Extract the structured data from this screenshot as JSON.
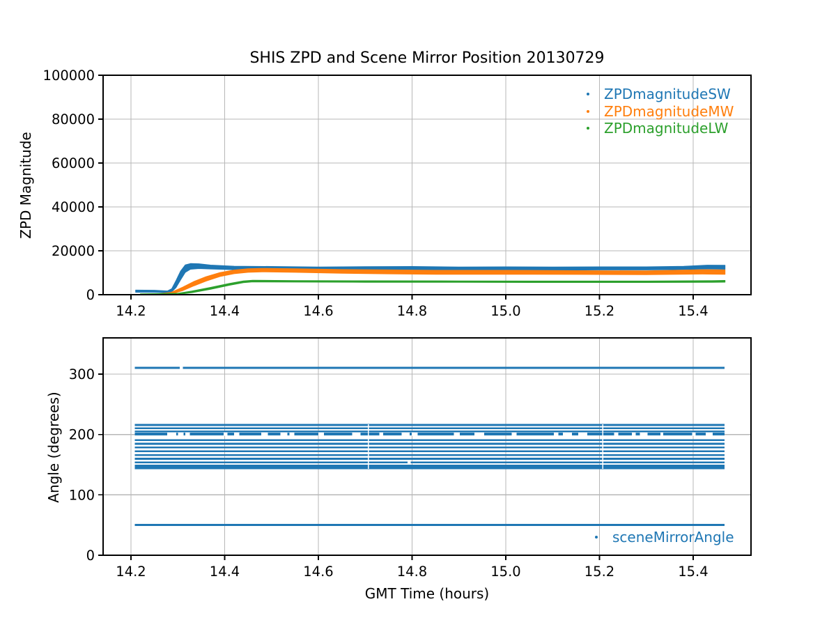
{
  "figure": {
    "title": "SHIS ZPD and Scene Mirror Position 20130729"
  },
  "palette": {
    "blue": "#1f77b4",
    "orange": "#ff7f0e",
    "green": "#2ca02c",
    "grid": "#b7b7b7",
    "axis": "#000000",
    "background": "#ffffff"
  },
  "chart_data": [
    {
      "type": "scatter",
      "title": "SHIS ZPD and Scene Mirror Position 20130729",
      "xlabel": "",
      "ylabel": "ZPD Magnitude",
      "xlim": [
        14.1405,
        15.5235
      ],
      "ylim": [
        0,
        100000
      ],
      "xticks": [
        14.2,
        14.4,
        14.6,
        14.8,
        15.0,
        15.2,
        15.4
      ],
      "xticklabels": [
        "14.2",
        "14.4",
        "14.6",
        "14.8",
        "15.0",
        "15.2",
        "15.4"
      ],
      "yticks": [
        0,
        20000,
        40000,
        60000,
        80000,
        100000
      ],
      "yticklabels": [
        "0",
        "20000",
        "40000",
        "60000",
        "80000",
        "100000"
      ],
      "grid": true,
      "legend": {
        "position": "upper right",
        "frame": false,
        "entries": [
          {
            "label": "ZPDmagnitudeSW",
            "color": "#1f77b4"
          },
          {
            "label": "ZPDmagnitudeMW",
            "color": "#ff7f0e"
          },
          {
            "label": "ZPDmagnitudeLW",
            "color": "#2ca02c"
          }
        ]
      },
      "series": [
        {
          "name": "ZPDmagnitudeSW",
          "color": "#1f77b4",
          "points_t_value_spread": [
            [
              14.21,
              1600,
              500
            ],
            [
              14.25,
              1550,
              480
            ],
            [
              14.268,
              1400,
              420
            ],
            [
              14.278,
              1300,
              400
            ],
            [
              14.287,
              2000,
              700
            ],
            [
              14.296,
              4800,
              1600
            ],
            [
              14.306,
              8800,
              2000
            ],
            [
              14.316,
              11900,
              1700
            ],
            [
              14.327,
              12900,
              1300
            ],
            [
              14.345,
              13000,
              1100
            ],
            [
              14.37,
              12600,
              900
            ],
            [
              14.42,
              12200,
              800
            ],
            [
              14.5,
              12100,
              750
            ],
            [
              14.6,
              11900,
              750
            ],
            [
              14.7,
              12000,
              750
            ],
            [
              14.8,
              12100,
              750
            ],
            [
              14.9,
              11900,
              700
            ],
            [
              15.0,
              12000,
              700
            ],
            [
              15.1,
              11900,
              700
            ],
            [
              15.2,
              12000,
              700
            ],
            [
              15.3,
              12000,
              700
            ],
            [
              15.38,
              12200,
              750
            ],
            [
              15.43,
              12600,
              850
            ],
            [
              15.468,
              12500,
              900
            ]
          ]
        },
        {
          "name": "ZPDmagnitudeMW",
          "color": "#ff7f0e",
          "points_t_value_spread": [
            [
              14.258,
              250,
              200
            ],
            [
              14.285,
              650,
              380
            ],
            [
              14.31,
              2600,
              800
            ],
            [
              14.335,
              5100,
              1000
            ],
            [
              14.36,
              7200,
              1000
            ],
            [
              14.39,
              9200,
              900
            ],
            [
              14.42,
              10400,
              850
            ],
            [
              14.45,
              11000,
              800
            ],
            [
              14.48,
              11200,
              800
            ],
            [
              14.55,
              11000,
              800
            ],
            [
              14.65,
              10600,
              850
            ],
            [
              14.75,
              10400,
              900
            ],
            [
              14.85,
              10200,
              900
            ],
            [
              15.0,
              10200,
              900
            ],
            [
              15.15,
              10100,
              850
            ],
            [
              15.3,
              10000,
              850
            ],
            [
              15.42,
              10400,
              1000
            ],
            [
              15.468,
              10300,
              1000
            ]
          ]
        },
        {
          "name": "ZPDmagnitudeLW",
          "color": "#2ca02c",
          "points_t_value_spread": [
            [
              14.22,
              200,
              180
            ],
            [
              14.3,
              380,
              240
            ],
            [
              14.33,
              1300,
              380
            ],
            [
              14.37,
              2900,
              420
            ],
            [
              14.41,
              4700,
              420
            ],
            [
              14.44,
              5900,
              400
            ],
            [
              14.46,
              6200,
              360
            ],
            [
              14.55,
              6100,
              340
            ],
            [
              14.7,
              6000,
              340
            ],
            [
              14.9,
              5950,
              330
            ],
            [
              15.1,
              5900,
              330
            ],
            [
              15.3,
              5900,
              330
            ],
            [
              15.44,
              6000,
              380
            ],
            [
              15.468,
              6100,
              400
            ]
          ]
        }
      ]
    },
    {
      "type": "scatter",
      "title": "",
      "xlabel": "GMT Time (hours)",
      "ylabel": "Angle (degrees)",
      "xlim": [
        14.1405,
        15.5235
      ],
      "ylim": [
        0,
        360
      ],
      "xticks": [
        14.2,
        14.4,
        14.6,
        14.8,
        15.0,
        15.2,
        15.4
      ],
      "xticklabels": [
        "14.2",
        "14.4",
        "14.6",
        "14.8",
        "15.0",
        "15.2",
        "15.4"
      ],
      "yticks": [
        0,
        100,
        200,
        300
      ],
      "yticklabels": [
        "0",
        "100",
        "200",
        "300"
      ],
      "grid": true,
      "legend": {
        "position": "lower right",
        "frame": false,
        "entries": [
          {
            "label": "sceneMirrorAngle",
            "color": "#1f77b4"
          }
        ]
      },
      "series": [
        {
          "name": "sceneMirrorAngle",
          "color": "#1f77b4",
          "t_range": [
            14.208,
            15.467
          ],
          "band_range_deg": [
            143.0,
            217.0
          ],
          "hlines_angle_thickness": [
            {
              "angle": 310.5,
              "px": 3.0,
              "gaps": [
                [
                  14.304,
                  14.311
                ]
              ]
            },
            {
              "angle": 50.2,
              "px": 2.6,
              "gaps": []
            },
            {
              "angle": 215.8,
              "px": 2.6,
              "gaps": []
            },
            {
              "angle": 210.4,
              "px": 2.6,
              "gaps": []
            },
            {
              "angle": 205.3,
              "px": 2.6,
              "gaps": []
            },
            {
              "angle": 200.7,
              "px": 4.0,
              "gaps": [
                [
                  14.277,
                  14.297
                ],
                [
                  14.3,
                  14.312
                ],
                [
                  14.316,
                  14.326
                ],
                [
                  14.398,
                  14.406
                ],
                [
                  14.42,
                  14.431
                ],
                [
                  14.478,
                  14.492
                ],
                [
                  14.519,
                  14.534
                ],
                [
                  14.538,
                  14.549
                ],
                [
                  14.6,
                  14.612
                ],
                [
                  14.672,
                  14.69
                ],
                [
                  14.73,
                  14.738
                ],
                [
                  14.778,
                  14.795
                ],
                [
                  14.799,
                  14.812
                ],
                [
                  14.889,
                  14.902
                ],
                [
                  14.933,
                  14.954
                ],
                [
                  15.013,
                  15.023
                ],
                [
                  15.103,
                  15.112
                ],
                [
                  15.122,
                  15.141
                ],
                [
                  15.155,
                  15.174
                ],
                [
                  15.231,
                  15.24
                ],
                [
                  15.269,
                  15.277
                ],
                [
                  15.286,
                  15.303
                ],
                [
                  15.33,
                  15.336
                ],
                [
                  15.398,
                  15.405
                ],
                [
                  15.427,
                  15.442
                ]
              ]
            },
            {
              "angle": 190.8,
              "px": 2.6,
              "gaps": []
            },
            {
              "angle": 184.6,
              "px": 2.6,
              "gaps": []
            },
            {
              "angle": 178.4,
              "px": 2.6,
              "gaps": []
            },
            {
              "angle": 172.2,
              "px": 2.6,
              "gaps": []
            },
            {
              "angle": 166.0,
              "px": 2.6,
              "gaps": []
            },
            {
              "angle": 159.8,
              "px": 2.6,
              "gaps": []
            },
            {
              "angle": 153.6,
              "px": 2.6,
              "gaps": [
                [
                  14.79,
                  14.797
                ]
              ]
            },
            {
              "angle": 148.3,
              "px": 2.6,
              "gaps": []
            },
            {
              "angle": 144.3,
              "px": 3.6,
              "gaps": []
            }
          ],
          "vertical_band_gaps_t": [
            14.707,
            15.207
          ]
        }
      ]
    }
  ]
}
